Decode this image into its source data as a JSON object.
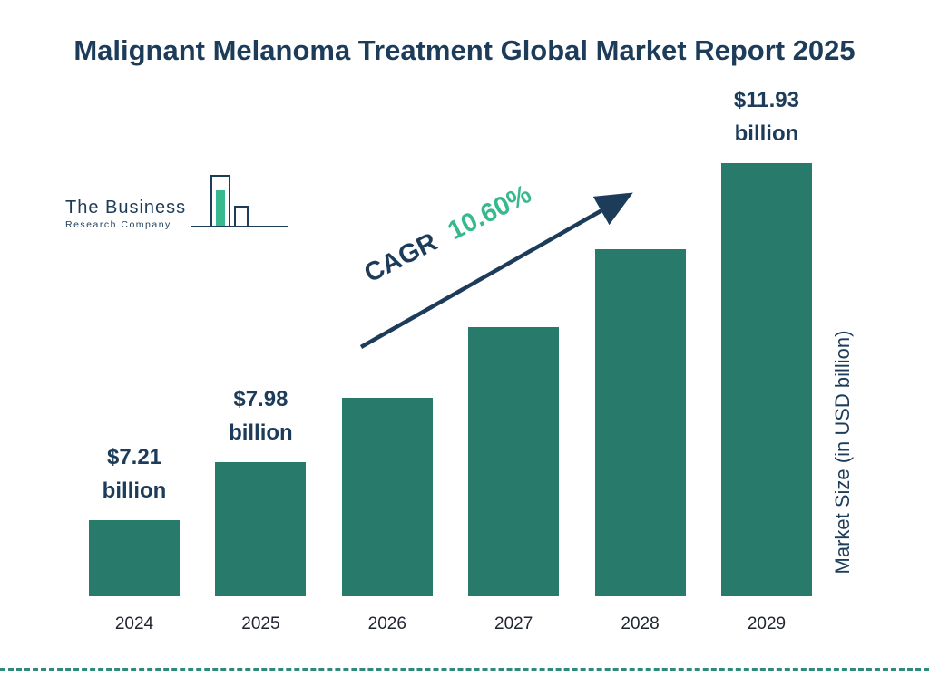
{
  "title": "Malignant Melanoma Treatment Global Market Report 2025",
  "logo": {
    "name_line": "The Business",
    "sub_line": "Research Company"
  },
  "cagr": {
    "label": "CAGR",
    "value": "10.60%"
  },
  "colors": {
    "bar": "#287a6b",
    "navy": "#1d3c5a",
    "green": "#36b98c",
    "dashed_rule": "#2f8a79"
  },
  "chart_data": {
    "type": "bar",
    "title": "Malignant Melanoma Treatment Global Market Report 2025",
    "categories": [
      "2024",
      "2025",
      "2026",
      "2027",
      "2028",
      "2029"
    ],
    "values": [
      7.21,
      7.98,
      8.82,
      9.76,
      10.79,
      11.93
    ],
    "bar_labels": [
      {
        "value": "$7.21",
        "unit": "billion"
      },
      {
        "value": "$7.98",
        "unit": "billion"
      },
      null,
      null,
      null,
      {
        "value": "$11.93",
        "unit": "billion"
      }
    ],
    "cagr": "10.60%",
    "xlabel": "",
    "ylabel": "Market Size (in USD billion)",
    "axis_min_estimate": 6.2,
    "legend": "off",
    "grid": "off"
  }
}
